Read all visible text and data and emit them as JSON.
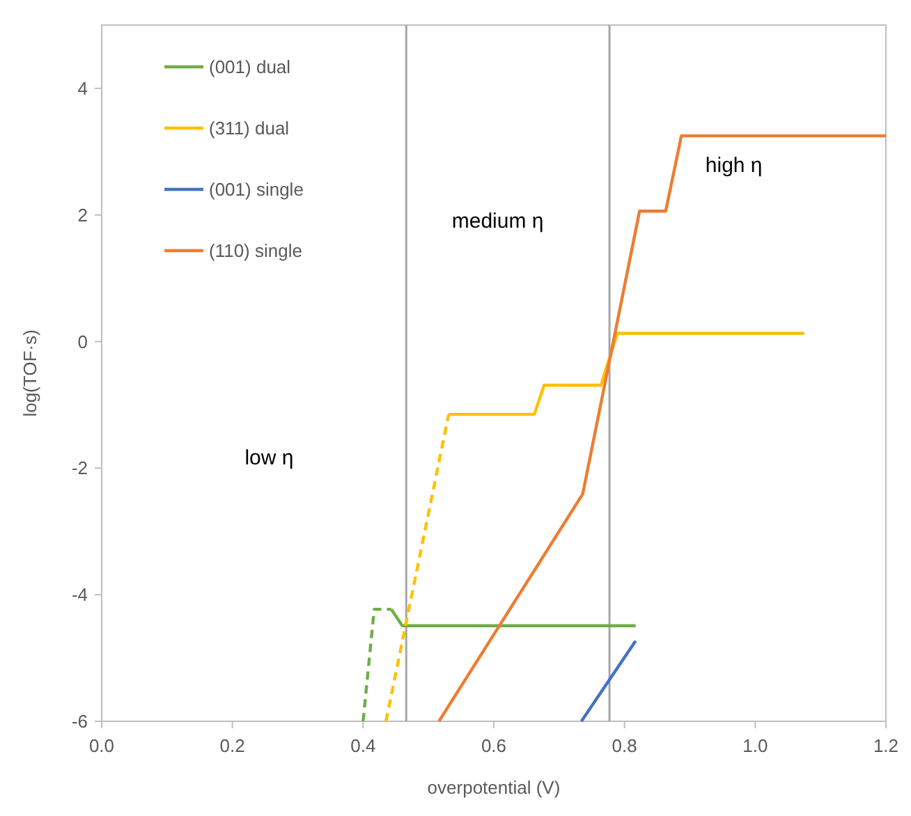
{
  "chart_data": {
    "type": "line",
    "xlabel": "overpotential (V)",
    "ylabel": "log(TOF·s)",
    "xlim": [
      0,
      1.2
    ],
    "xticks": [
      {
        "value": 0,
        "label": "0.0"
      },
      0.2,
      0.4,
      0.6,
      0.8,
      {
        "value": 1,
        "label": "1.0"
      },
      1.2
    ],
    "ylim": [
      -6,
      5
    ],
    "yticks": [
      -6,
      -4,
      -2,
      0,
      2,
      4
    ],
    "grid": false,
    "legend": "top left",
    "series": [
      {
        "name": "(001) dual",
        "color": "#70ad47",
        "line_style": "solid",
        "x": [
          0.443,
          0.46,
          0.817
        ],
        "values": [
          -4.23,
          -4.49,
          -4.49
        ]
      },
      {
        "name": "(311) dual",
        "color": "#ffc000",
        "line_style": "solid",
        "x": [
          0.531,
          0.662,
          0.677,
          0.764,
          0.789,
          1.075
        ],
        "values": [
          -1.15,
          -1.15,
          -0.69,
          -0.69,
          0.13,
          0.13
        ]
      },
      {
        "name": "(001) single",
        "color": "#4472c4",
        "line_style": "solid",
        "x": [
          0.734,
          0.817
        ],
        "values": [
          -6,
          -4.73
        ]
      },
      {
        "name": "(110) single",
        "color": "#ed7d31",
        "line_style": "solid",
        "x": [
          0.516,
          0.736,
          0.823,
          0.863,
          0.887,
          1.2
        ],
        "values": [
          -6,
          -2.41,
          2.06,
          2.06,
          3.25,
          3.25
        ]
      },
      {
        "color": "#70ad47",
        "line_style": "dashed",
        "x": [
          0.4,
          0.417,
          0.443
        ],
        "values": [
          -6,
          -4.23,
          -4.23
        ]
      },
      {
        "color": "#ffc000",
        "line_style": "dashed",
        "x": [
          0.435,
          0.531
        ],
        "values": [
          -6,
          -1.15
        ]
      }
    ],
    "ref_lines": [
      {
        "axis": "x",
        "value": 0.466,
        "color": "#a6a6a6"
      },
      {
        "axis": "x",
        "value": 0.777,
        "color": "#a6a6a6"
      }
    ],
    "annotations": [
      "low η",
      "medium η",
      "high η"
    ]
  }
}
